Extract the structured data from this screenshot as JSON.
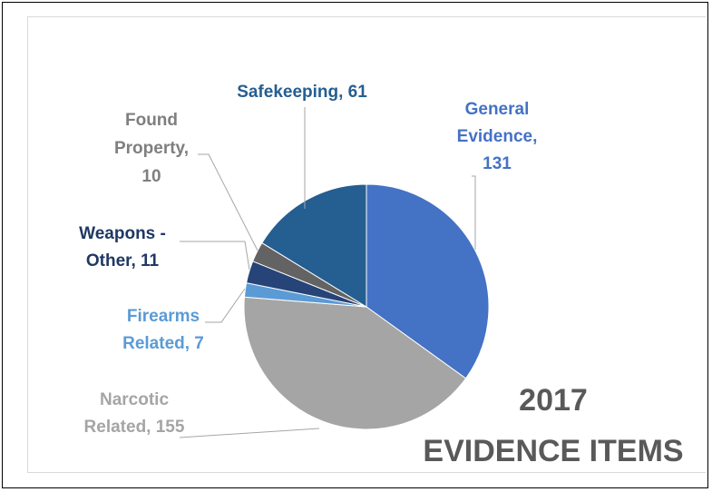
{
  "chart_data": {
    "type": "pie",
    "title_line1": "2017",
    "title_line2": "EVIDENCE ITEMS",
    "slices": [
      {
        "label_lines": [
          "General",
          "Evidence,",
          "131"
        ],
        "value": 131,
        "color": "#4472c4"
      },
      {
        "label_lines": [
          "Narcotic",
          "Related, 155"
        ],
        "value": 155,
        "color": "#a5a5a5"
      },
      {
        "label_lines": [
          "Firearms",
          "Related, 7"
        ],
        "value": 7,
        "color": "#5b9bd5"
      },
      {
        "label_lines": [
          "Weapons -",
          "Other, 11"
        ],
        "value": 11,
        "color": "#264478"
      },
      {
        "label_lines": [
          "Found",
          "Property,",
          "10"
        ],
        "value": 10,
        "color": "#636363"
      },
      {
        "label_lines": [
          "Safekeeping, 61"
        ],
        "value": 61,
        "color": "#255e91"
      }
    ]
  }
}
